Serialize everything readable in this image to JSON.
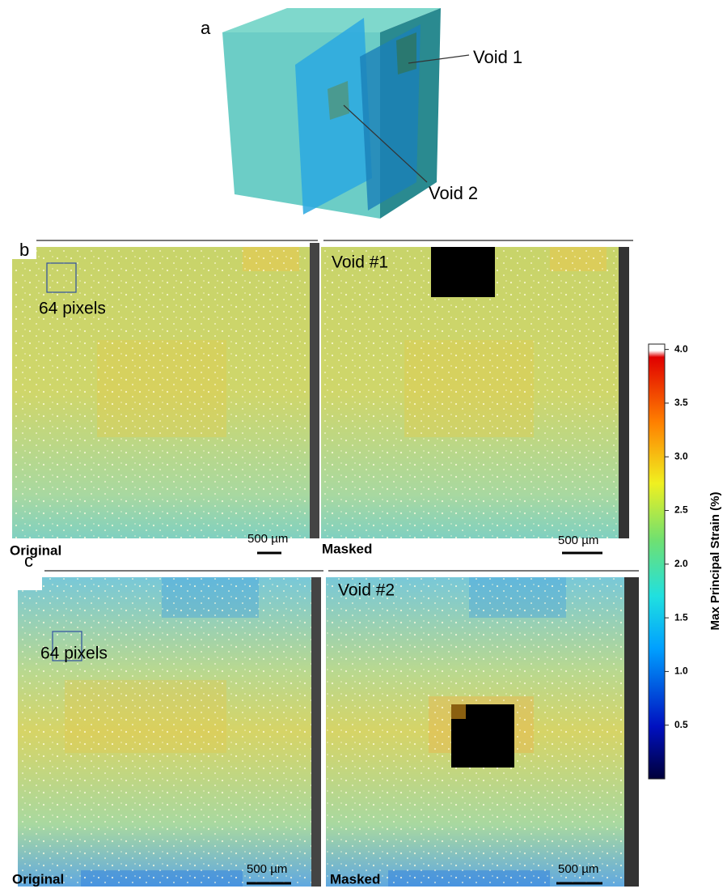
{
  "panel_a": {
    "label": "a",
    "void_1": "Void 1",
    "void_2": "Void 2"
  },
  "panel_b": {
    "label": "b",
    "box_note": "64 pixels",
    "void_label": "Void #1",
    "left_caption": "Original",
    "right_caption": "Masked",
    "scale_bar": "500 µm"
  },
  "panel_c": {
    "label": "c",
    "box_note": "64 pixels",
    "void_label": "Void #2",
    "left_caption": "Original",
    "right_caption": "Masked",
    "scale_bar": "500 µm"
  },
  "colorbar": {
    "title": "Max Principal Strain (%)",
    "lim": [
      0,
      4.05
    ],
    "ticks": [
      {
        "value": 0.5,
        "label": "0.5"
      },
      {
        "value": 1,
        "label": "1.0"
      },
      {
        "value": 1.5,
        "label": "1.5"
      },
      {
        "value": 2,
        "label": "2.0"
      },
      {
        "value": 2.5,
        "label": "2.5"
      },
      {
        "value": 3,
        "label": "3.0"
      },
      {
        "value": 3.5,
        "label": "3.5"
      },
      {
        "value": 4,
        "label": "4.0"
      }
    ]
  }
}
